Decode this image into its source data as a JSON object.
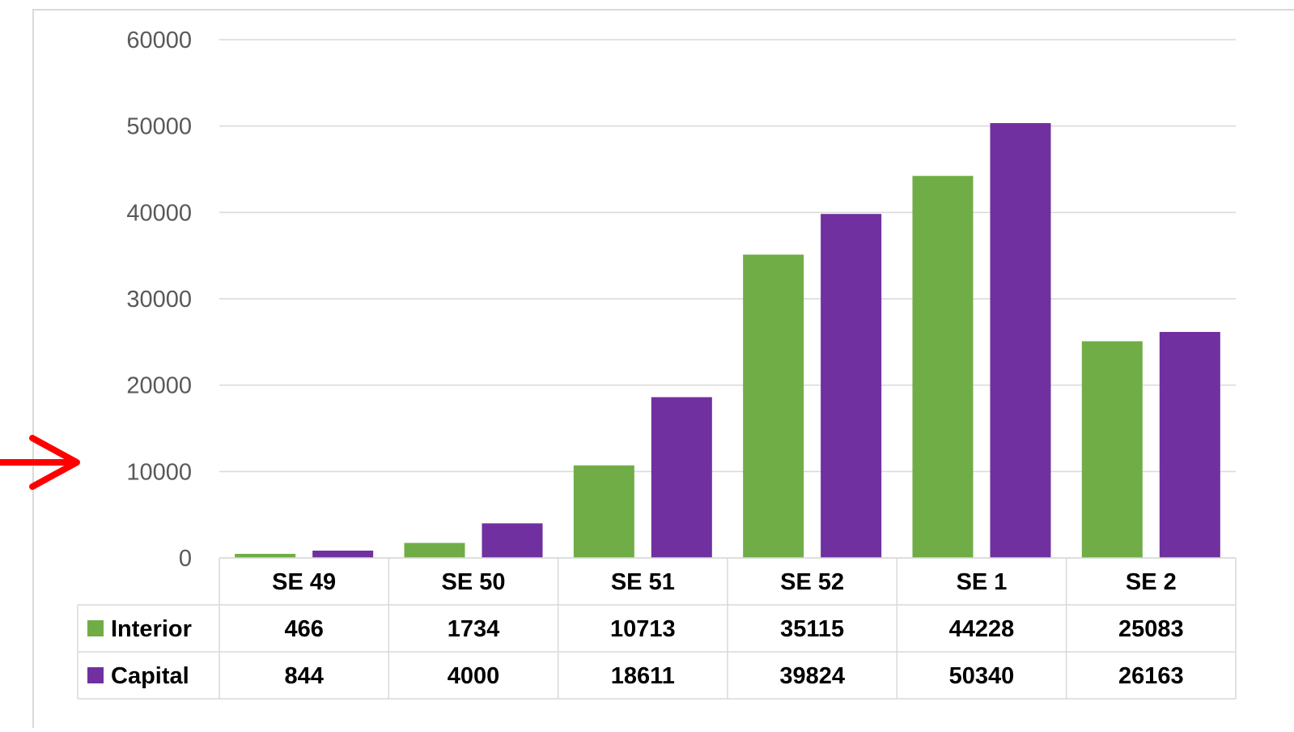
{
  "chart_data": {
    "type": "bar",
    "title": "",
    "xlabel": "",
    "ylabel": "",
    "categories": [
      "SE 49",
      "SE 50",
      "SE 51",
      "SE 52",
      "SE 1",
      "SE 2"
    ],
    "series": [
      {
        "name": "Interior",
        "color": "#70ad47",
        "values": [
          466,
          1734,
          10713,
          35115,
          44228,
          25083
        ]
      },
      {
        "name": "Capital",
        "color": "#7030a0",
        "values": [
          844,
          4000,
          18611,
          39824,
          50340,
          26163
        ]
      }
    ],
    "ylim": [
      0,
      60000
    ],
    "yticks": [
      "0",
      "10000",
      "20000",
      "30000",
      "40000",
      "50000",
      "60000"
    ],
    "grid": true,
    "legend": "data-table",
    "data_table": true,
    "annotations": [
      {
        "type": "arrow",
        "color": "#ff0000",
        "points_to": "10000"
      }
    ]
  }
}
